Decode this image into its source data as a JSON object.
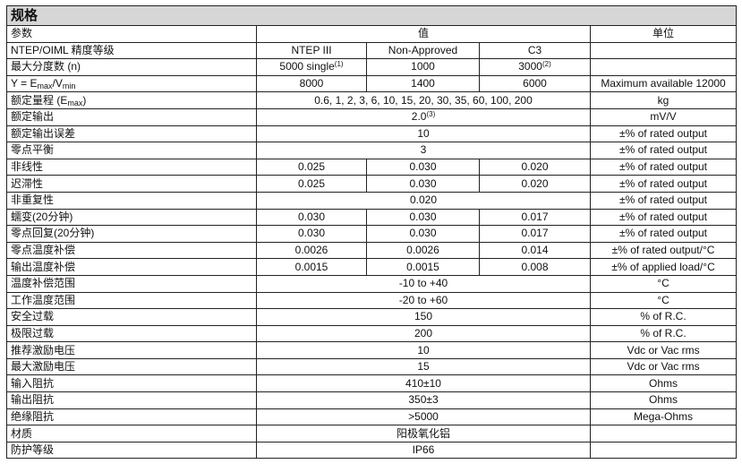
{
  "title": "规格",
  "header": {
    "param": "参数",
    "value": "值",
    "unit": "单位"
  },
  "rows": [
    {
      "param": "NTEP/OIML 精度等级",
      "values": [
        "NTEP III",
        "Non-Approved",
        "C3"
      ]
    },
    {
      "param": "最大分度数 (n)",
      "values": [
        {
          "text": "5000 single",
          "sup": "(1)"
        },
        "1000",
        {
          "text": "3000",
          "sup": "(2)"
        }
      ]
    },
    {
      "param": [
        "Y = E",
        "max",
        "/V",
        "min"
      ],
      "values": [
        "8000",
        "1400",
        "6000"
      ],
      "unit": "Maximum available 12000"
    },
    {
      "param": [
        "额定量程  (E",
        "max",
        ")"
      ],
      "value": "0.6, 1, 2, 3, 6, 10, 15, 20, 30, 35, 60, 100, 200",
      "unit": "kg"
    },
    {
      "param": "额定输出",
      "value": {
        "text": "2.0",
        "sup": "(3)"
      },
      "unit": "mV/V"
    },
    {
      "param": "额定输出误差",
      "value": "10",
      "unit": "±% of rated output"
    },
    {
      "param": "零点平衡",
      "value": "3",
      "unit": "±% of rated output"
    },
    {
      "param": "非线性",
      "values": [
        "0.025",
        "0.030",
        "0.020"
      ],
      "unit": "±% of rated output"
    },
    {
      "param": "迟滞性",
      "values": [
        "0.025",
        "0.030",
        "0.020"
      ],
      "unit": "±% of rated output"
    },
    {
      "param": "非重复性",
      "value": "0.020",
      "unit": "±% of rated output"
    },
    {
      "param": "蠕变(20分钟)",
      "values": [
        "0.030",
        "0.030",
        "0.017"
      ],
      "unit": "±% of rated output"
    },
    {
      "param": "零点回复(20分钟)",
      "values": [
        "0.030",
        "0.030",
        "0.017"
      ],
      "unit": "±% of rated output"
    },
    {
      "param": "零点温度补偿",
      "values": [
        "0.0026",
        "0.0026",
        "0.014"
      ],
      "unit": "±% of rated output/°C"
    },
    {
      "param": "输出温度补偿",
      "values": [
        "0.0015",
        "0.0015",
        "0.008"
      ],
      "unit": "±% of applied load/°C"
    },
    {
      "param": "温度补偿范围",
      "value": "-10 to +40",
      "unit": "°C"
    },
    {
      "param": "工作温度范围",
      "value": "-20 to +60",
      "unit": "°C"
    },
    {
      "param": "安全过载",
      "value": "150",
      "unit": "% of R.C."
    },
    {
      "param": "极限过载",
      "value": "200",
      "unit": "% of R.C."
    },
    {
      "param": "推荐激励电压",
      "value": "10",
      "unit": "Vdc or Vac rms"
    },
    {
      "param": "最大激励电压",
      "value": "15",
      "unit": "Vdc or Vac rms"
    },
    {
      "param": "输入阻抗",
      "value": "410±10",
      "unit": "Ohms"
    },
    {
      "param": "输出阻抗",
      "value": "350±3",
      "unit": "Ohms"
    },
    {
      "param": "绝缘阻抗",
      "value": ">5000",
      "unit": "Mega-Ohms"
    },
    {
      "param": "材质",
      "value": "阳极氧化铝"
    },
    {
      "param": "防护等级",
      "value": "IP66"
    }
  ]
}
